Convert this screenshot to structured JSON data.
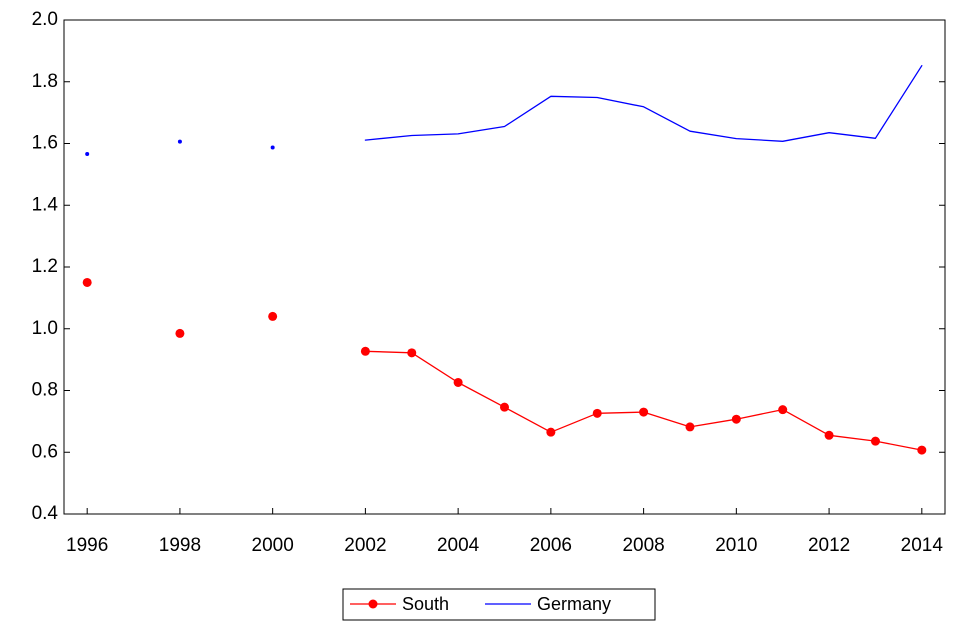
{
  "chart_data": {
    "type": "line",
    "x": [
      1996,
      1997,
      1998,
      1999,
      2000,
      2001,
      2002,
      2003,
      2004,
      2005,
      2006,
      2007,
      2008,
      2009,
      2010,
      2011,
      2012,
      2013,
      2014
    ],
    "series": [
      {
        "name": "South",
        "color": "#ff0000",
        "marker": true,
        "values": [
          1.15,
          null,
          0.985,
          null,
          1.04,
          null,
          0.927,
          0.922,
          0.826,
          0.746,
          0.665,
          0.726,
          0.73,
          0.682,
          0.707,
          0.738,
          0.655,
          0.636,
          0.607
        ]
      },
      {
        "name": "Germany",
        "color": "#0000ff",
        "marker": false,
        "values": [
          1.566,
          null,
          1.606,
          null,
          1.587,
          null,
          1.611,
          1.626,
          1.631,
          1.655,
          1.753,
          1.749,
          1.719,
          1.64,
          1.616,
          1.607,
          1.635,
          1.617,
          1.852
        ]
      }
    ],
    "xlim": [
      1995.5,
      2014.5
    ],
    "xticks": [
      1996,
      1998,
      2000,
      2002,
      2004,
      2006,
      2008,
      2010,
      2012,
      2014
    ],
    "ylim": [
      0.4,
      2.0
    ],
    "yticks": [
      0.4,
      0.6,
      0.8,
      {
        "value": 1.0,
        "label": "1.0"
      },
      1.2,
      1.4,
      1.6,
      1.8,
      {
        "value": 2.0,
        "label": "2.0"
      }
    ],
    "grid": false,
    "legend": "bottom"
  }
}
